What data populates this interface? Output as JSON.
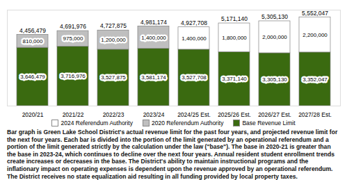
{
  "chart_data": {
    "type": "bar",
    "stacked": true,
    "data_labels": true,
    "tick_labels": "x",
    "categories": [
      "2020/21",
      "2021/22",
      "2022/23",
      "2023/24",
      "2024/25 Est.",
      "2025/26 Est.",
      "2026/27 Est.",
      "2027/28 Est."
    ],
    "series": [
      {
        "name": "Base Revenue Limit",
        "color": "#3a6a10",
        "values": [
          3646479,
          3716976,
          3527875,
          3581174,
          3527708,
          3371140,
          3305130,
          3352047
        ],
        "value_labels": [
          "3,646,479",
          "3,716,976",
          "3,527,875",
          "3,581,174",
          "3,527,708",
          "3,371,140",
          "3,305,130",
          "3,352,047"
        ]
      },
      {
        "name": "2020 Referendum Authority",
        "color": "#bfbfbf",
        "values": [
          810000,
          975000,
          1200000,
          1400000,
          null,
          null,
          null,
          null
        ],
        "value_labels": [
          "810,000",
          "975,000",
          "1,200,000",
          "1,400,000",
          null,
          null,
          null,
          null
        ]
      },
      {
        "name": "2024 Referendum Authority",
        "color": "#ffffff",
        "values": [
          null,
          null,
          null,
          null,
          1400000,
          1800000,
          2000000,
          2200000
        ],
        "value_labels": [
          null,
          null,
          null,
          null,
          "1,400,000",
          "1,800,000",
          "2,000,000",
          "2,200,000"
        ]
      }
    ],
    "totals": [
      4456479,
      4691976,
      4727875,
      4981174,
      4927708,
      5171140,
      5305130,
      5552047
    ],
    "total_labels": [
      "4,456,479",
      "4,691,976",
      "4,727,875",
      "4,981,174",
      "4,927,708",
      "5,171,140",
      "5,305,130",
      "5,552,047"
    ],
    "ylim": [
      0,
      6000000
    ],
    "yticks": [],
    "caption": "Bar graph is Green Lake School District's actual revenue limit for the past four years, and projected revenue limit for the next four years. Each bar is divided into the portion of the limit generated by an operational referendum and a portion of the limit generated strictly by the calculation under the law (\"base\"). The base in 2020-21 is greater than the base in 2023-24, which continues to decline over the next four years. Annual resident student enrollment trends create increases or decreases in the base. The District's ability to maintain instructional programs and the inflationary impact on operating expenses is dependent upon the revenue approved by an operational referendum. The District receives no state equalization aid resulting in all funding provided by local property taxes."
  }
}
